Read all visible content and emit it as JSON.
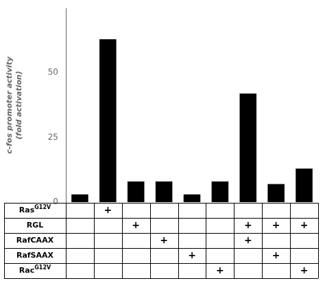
{
  "chart_data": {
    "type": "bar",
    "categories": [
      null,
      null,
      null,
      null,
      null,
      null,
      null,
      null,
      null
    ],
    "values": [
      3,
      63,
      8,
      8,
      3,
      8,
      42,
      7,
      13
    ],
    "color": "#000000",
    "ylabel": [
      "c-fos promoter activity",
      "(fold activation)"
    ],
    "ylim": [
      0,
      75
    ],
    "yticks": [
      0,
      25,
      50
    ],
    "grid": false,
    "tick_labels": "y",
    "table_rows": [
      {
        "text": "Ras",
        "superscript": "G12V"
      },
      "RGL",
      "RafCAAX",
      "RafSAAX",
      {
        "text": "Rac",
        "superscript": "G12V"
      }
    ],
    "table_marks": [
      [
        0,
        1,
        0,
        0,
        0,
        0,
        0,
        0,
        0
      ],
      [
        0,
        0,
        1,
        0,
        0,
        0,
        1,
        1,
        1
      ],
      [
        0,
        0,
        0,
        1,
        0,
        0,
        1,
        0,
        0
      ],
      [
        0,
        0,
        0,
        0,
        1,
        0,
        0,
        1,
        0
      ],
      [
        0,
        0,
        0,
        0,
        0,
        1,
        0,
        0,
        1
      ]
    ],
    "table_mark": "+"
  }
}
